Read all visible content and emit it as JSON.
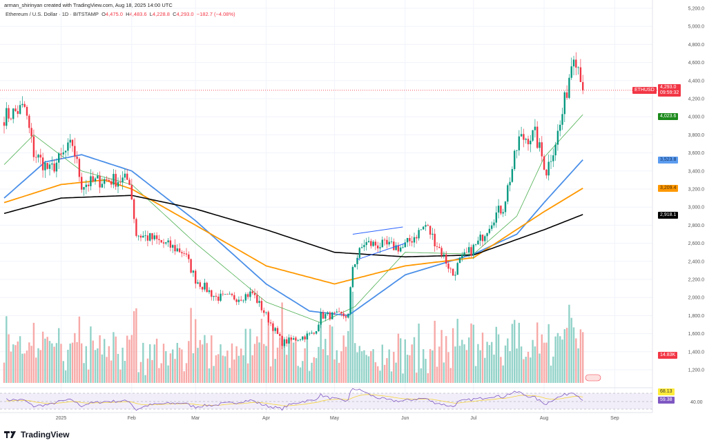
{
  "credit": "arman_shirinyan created with TradingView.com, Aug 18, 2025 14:00 UTC",
  "legend": {
    "symbol": "Ethereum / U.S. Dollar · 1D · BITSTAMP",
    "o_label": "O",
    "o": "4,475.0",
    "h_label": "H",
    "h": "4,483.6",
    "l_label": "L",
    "l": "4,228.8",
    "c_label": "C",
    "c": "4,293.0",
    "change": "−182.7 (−4.08%)"
  },
  "price_axis": [
    "5,200.0",
    "5,000.0",
    "4,800.0",
    "4,600.0",
    "4,400.0",
    "4,200.0",
    "4,000.0",
    "3,800.0",
    "3,600.0",
    "3,400.0",
    "3,200.0",
    "3,000.0",
    "2,800.0",
    "2,600.0",
    "2,400.0",
    "2,200.0",
    "2,000.0",
    "1,800.0",
    "1,600.0",
    "1,400.0",
    "1,200.0"
  ],
  "time_axis": [
    "2025",
    "Feb",
    "Mar",
    "Apr",
    "May",
    "Jun",
    "Jul",
    "Aug",
    "Sep"
  ],
  "tags": {
    "symbol": "ETHUSD",
    "last_price": "4,293.0",
    "countdown": "09:59:32",
    "ma_green": "4,023.6",
    "ma_blue": "3,523.8",
    "ma_orange": "3,209.4",
    "ma_black": "2,918.1",
    "volume": "14.83K",
    "rsi": "59.38",
    "rsi_ma": "68.13",
    "rsi_level": "40.00"
  },
  "colors": {
    "up": "#089981",
    "down": "#f23645",
    "ma_green": "#4caf50",
    "ma_blue": "#4a8fe8",
    "ma_orange": "#ff9800",
    "ma_black": "#000000",
    "rsi": "#7e57c2"
  },
  "chart_data": {
    "type": "candlestick",
    "symbol": "ETHUSD",
    "interval": "1D",
    "ylim": [
      1100,
      5300
    ],
    "close_keypoints": [
      [
        "2024-12-07",
        4000
      ],
      [
        "2024-12-16",
        4100
      ],
      [
        "2024-12-20",
        3600
      ],
      [
        "2024-12-27",
        3400
      ],
      [
        "2025-01-06",
        3700
      ],
      [
        "2025-01-10",
        3250
      ],
      [
        "2025-01-20",
        3300
      ],
      [
        "2025-01-31",
        3300
      ],
      [
        "2025-02-03",
        2700
      ],
      [
        "2025-02-10",
        2650
      ],
      [
        "2025-02-24",
        2500
      ],
      [
        "2025-03-01",
        2200
      ],
      [
        "2025-03-10",
        2000
      ],
      [
        "2025-03-20",
        2000
      ],
      [
        "2025-03-26",
        2050
      ],
      [
        "2025-04-01",
        1800
      ],
      [
        "2025-04-08",
        1500
      ],
      [
        "2025-04-22",
        1600
      ],
      [
        "2025-04-25",
        1800
      ],
      [
        "2025-05-07",
        1800
      ],
      [
        "2025-05-09",
        2350
      ],
      [
        "2025-05-14",
        2600
      ],
      [
        "2025-05-31",
        2550
      ],
      [
        "2025-06-10",
        2800
      ],
      [
        "2025-06-17",
        2500
      ],
      [
        "2025-06-22",
        2250
      ],
      [
        "2025-06-25",
        2400
      ],
      [
        "2025-07-03",
        2600
      ],
      [
        "2025-07-10",
        2900
      ],
      [
        "2025-07-14",
        3000
      ],
      [
        "2025-07-21",
        3750
      ],
      [
        "2025-07-28",
        3800
      ],
      [
        "2025-08-02",
        3400
      ],
      [
        "2025-08-08",
        3900
      ],
      [
        "2025-08-11",
        4300
      ],
      [
        "2025-08-14",
        4750
      ],
      [
        "2025-08-17",
        4475
      ],
      [
        "2025-08-18",
        4293
      ]
    ],
    "moving_averages": [
      {
        "color": "#4caf50",
        "points": [
          [
            "2024-12-07",
            3470
          ],
          [
            "2024-12-20",
            3800
          ],
          [
            "2025-01-10",
            3400
          ],
          [
            "2025-02-01",
            3250
          ],
          [
            "2025-03-01",
            2600
          ],
          [
            "2025-04-01",
            1950
          ],
          [
            "2025-04-25",
            1720
          ],
          [
            "2025-05-10",
            1900
          ],
          [
            "2025-06-01",
            2500
          ],
          [
            "2025-07-01",
            2480
          ],
          [
            "2025-07-20",
            2900
          ],
          [
            "2025-08-01",
            3550
          ],
          [
            "2025-08-18",
            4024
          ]
        ]
      },
      {
        "color": "#4a8fe8",
        "points": [
          [
            "2024-12-07",
            3100
          ],
          [
            "2024-12-25",
            3500
          ],
          [
            "2025-01-10",
            3580
          ],
          [
            "2025-02-01",
            3400
          ],
          [
            "2025-03-01",
            2850
          ],
          [
            "2025-04-01",
            2150
          ],
          [
            "2025-04-20",
            1850
          ],
          [
            "2025-05-07",
            1800
          ],
          [
            "2025-06-01",
            2250
          ],
          [
            "2025-07-01",
            2480
          ],
          [
            "2025-07-20",
            2700
          ],
          [
            "2025-08-01",
            3050
          ],
          [
            "2025-08-18",
            3524
          ]
        ]
      },
      {
        "color": "#ff9800",
        "points": [
          [
            "2024-12-07",
            3050
          ],
          [
            "2025-01-01",
            3250
          ],
          [
            "2025-01-20",
            3300
          ],
          [
            "2025-02-01",
            3200
          ],
          [
            "2025-03-01",
            2800
          ],
          [
            "2025-04-01",
            2350
          ],
          [
            "2025-05-01",
            2150
          ],
          [
            "2025-06-01",
            2350
          ],
          [
            "2025-07-01",
            2440
          ],
          [
            "2025-08-01",
            2950
          ],
          [
            "2025-08-18",
            3209
          ]
        ]
      },
      {
        "color": "#000000",
        "points": [
          [
            "2024-12-07",
            2930
          ],
          [
            "2025-01-01",
            3100
          ],
          [
            "2025-02-01",
            3130
          ],
          [
            "2025-03-01",
            2980
          ],
          [
            "2025-04-01",
            2750
          ],
          [
            "2025-05-01",
            2500
          ],
          [
            "2025-06-01",
            2450
          ],
          [
            "2025-07-01",
            2470
          ],
          [
            "2025-08-01",
            2750
          ],
          [
            "2025-08-18",
            2918
          ]
        ]
      }
    ],
    "trendlines": [
      [
        [
          "2025-05-09",
          2700
        ],
        [
          "2025-05-31",
          2780
        ]
      ],
      [
        [
          "2025-05-11",
          2420
        ],
        [
          "2025-06-01",
          2600
        ]
      ]
    ]
  }
}
